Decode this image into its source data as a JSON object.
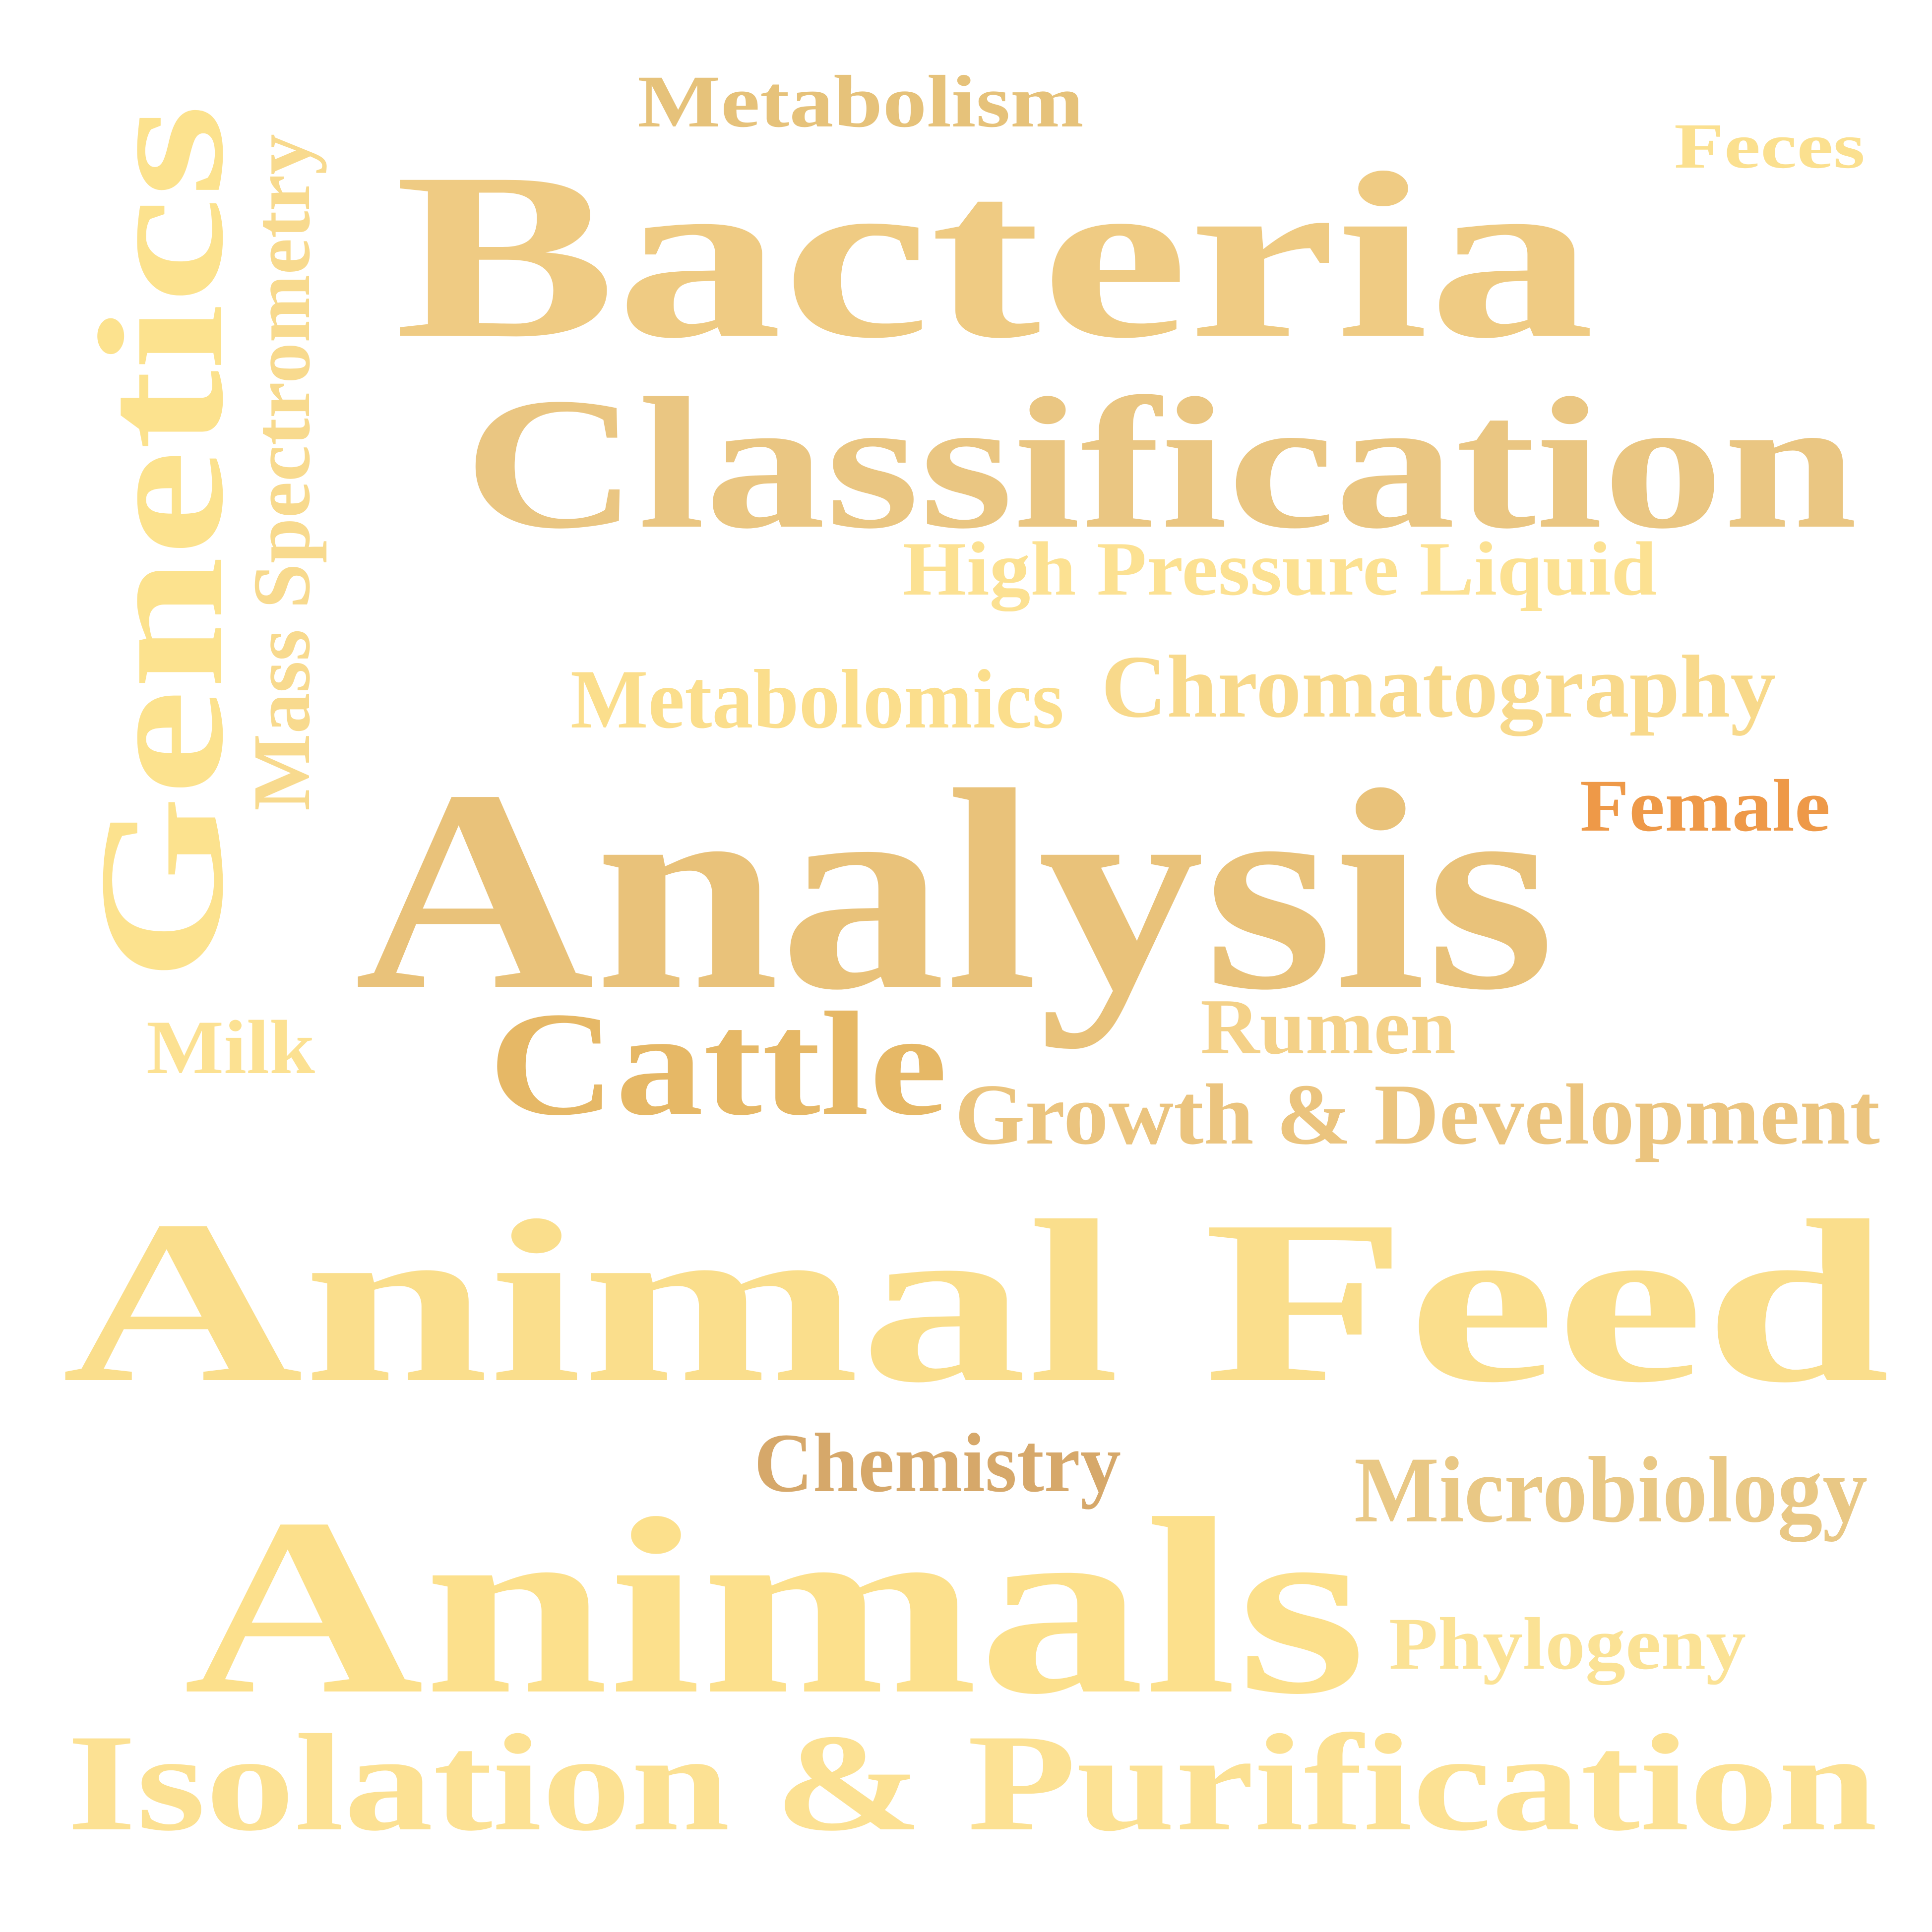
{
  "words": [
    {
      "text": "Metabolism",
      "color": "#E6C27A"
    },
    {
      "text": "Feces",
      "color": "#FBE08F"
    },
    {
      "text": "Bacteria",
      "color": "#EFCB83"
    },
    {
      "text": "Genetics",
      "color": "#FCE28E"
    },
    {
      "text": "Mass Spectrometry",
      "color": "#F8DA8E"
    },
    {
      "text": "Classification",
      "color": "#EAC682"
    },
    {
      "text": "High Pressure Liquid",
      "color": "#FCE192"
    },
    {
      "text": "Chromatography",
      "color": "#F8D98B"
    },
    {
      "text": "Metabolomics",
      "color": "#FBDE8C"
    },
    {
      "text": "Female",
      "color": "#EE9948"
    },
    {
      "text": "Analysis",
      "color": "#E9C27A"
    },
    {
      "text": "Milk",
      "color": "#FCE192"
    },
    {
      "text": "Cattle",
      "color": "#E6B866"
    },
    {
      "text": "Rumen",
      "color": "#F4D188"
    },
    {
      "text": "Growth & Development",
      "color": "#EBC47E"
    },
    {
      "text": "Animal Feed",
      "color": "#FADE8C"
    },
    {
      "text": "Chemistry",
      "color": "#D6A86A"
    },
    {
      "text": "Microbiology",
      "color": "#E9C885"
    },
    {
      "text": "Animals",
      "color": "#FCE08C"
    },
    {
      "text": "Phylogeny",
      "color": "#FBE295"
    },
    {
      "text": "Isolation & Purification",
      "color": "#FCE193"
    }
  ]
}
